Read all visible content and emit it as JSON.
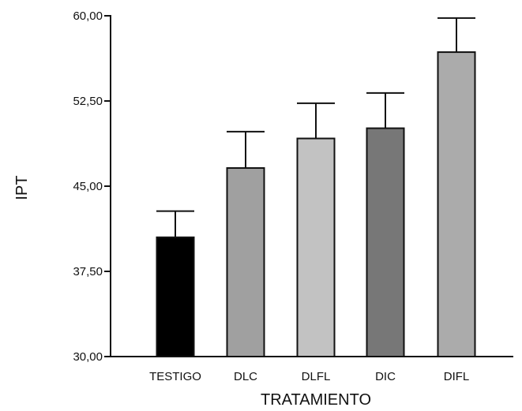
{
  "chart_data": {
    "type": "bar",
    "title": "",
    "xlabel": "TRATAMIENTO",
    "ylabel": "IPT",
    "categories": [
      "TESTIGO",
      "DLC",
      "DLFL",
      "DIC",
      "DIFL"
    ],
    "values": [
      40.5,
      46.6,
      49.2,
      50.1,
      56.8
    ],
    "error_upper": [
      42.8,
      49.8,
      52.3,
      53.2,
      59.8
    ],
    "bar_colors": [
      "#000000",
      "#a0a0a0",
      "#c2c2c2",
      "#777777",
      "#ababab"
    ],
    "ylim": [
      30,
      60
    ],
    "yticks": [
      30,
      37.5,
      45,
      52.5,
      60
    ],
    "ytick_labels": [
      "30,00",
      "37,50",
      "45,00",
      "52,50",
      "60,00"
    ],
    "grid": false,
    "legend": "none"
  }
}
